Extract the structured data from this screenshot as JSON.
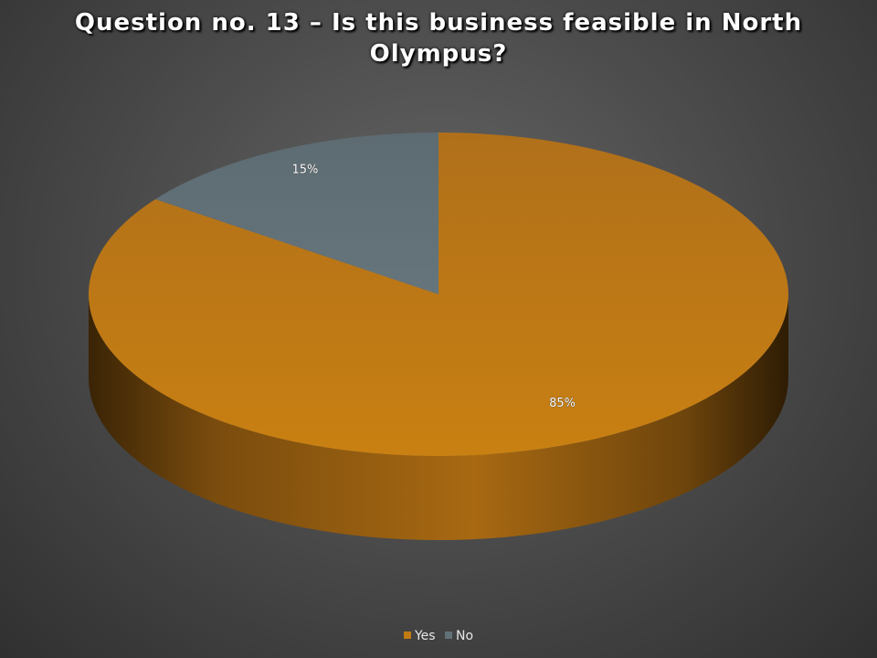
{
  "chart_data": {
    "type": "pie",
    "title": "Question no. 13 – Is this business feasible in North Olympus?",
    "categories": [
      "Yes",
      "No"
    ],
    "values": [
      85,
      15
    ],
    "data_labels": [
      "85%",
      "15%"
    ],
    "colors": [
      "#c37a12",
      "#627077"
    ],
    "legend_position": "bottom",
    "style": "3d"
  }
}
